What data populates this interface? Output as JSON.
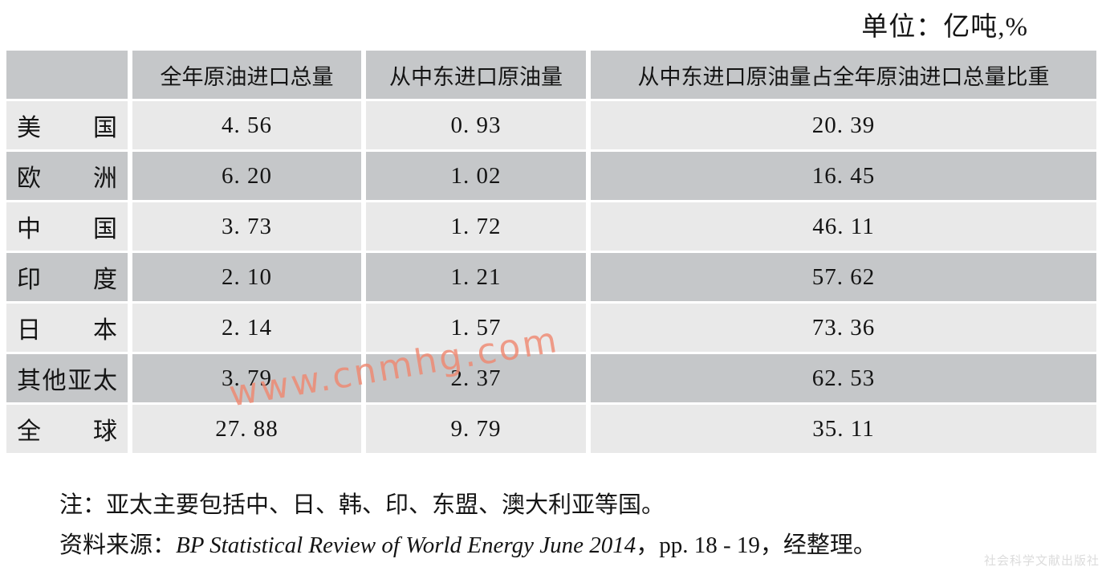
{
  "unit_label": "单位：亿吨,%",
  "table": {
    "columns": [
      "",
      "全年原油进口总量",
      "从中东进口原油量",
      "从中东进口原油量占全年原油进口总量比重"
    ],
    "rows": [
      {
        "region": "美国",
        "annual_total": "4. 56",
        "from_middle_east": "0. 93",
        "share": "20. 39"
      },
      {
        "region": "欧洲",
        "annual_total": "6. 20",
        "from_middle_east": "1. 02",
        "share": "16. 45"
      },
      {
        "region": "中国",
        "annual_total": "3. 73",
        "from_middle_east": "1. 72",
        "share": "46. 11"
      },
      {
        "region": "印度",
        "annual_total": "2. 10",
        "from_middle_east": "1. 21",
        "share": "57. 62"
      },
      {
        "region": "日本",
        "annual_total": "2. 14",
        "from_middle_east": "1. 57",
        "share": "73. 36"
      },
      {
        "region": "其他亚太",
        "annual_total": "3. 79",
        "from_middle_east": "2. 37",
        "share": "62. 53"
      },
      {
        "region": "全球",
        "annual_total": "27. 88",
        "from_middle_east": "9. 79",
        "share": "35. 11"
      }
    ]
  },
  "notes": {
    "note": "注：亚太主要包括中、日、韩、印、东盟、澳大利亚等国。",
    "source_prefix": "资料来源：",
    "source_title": "BP Statistical Review of World Energy June 2014",
    "source_suffix": "，pp. 18 - 19，经整理。"
  },
  "watermarks": {
    "site": "www.cnmhg.com",
    "publisher": "社会科学文献出版社"
  },
  "colors": {
    "row_light": "#e9e9e9",
    "row_dark": "#c5c7c9",
    "text": "#141414",
    "watermark_site": "#f0876f",
    "watermark_publisher": "#dcdcdc"
  }
}
